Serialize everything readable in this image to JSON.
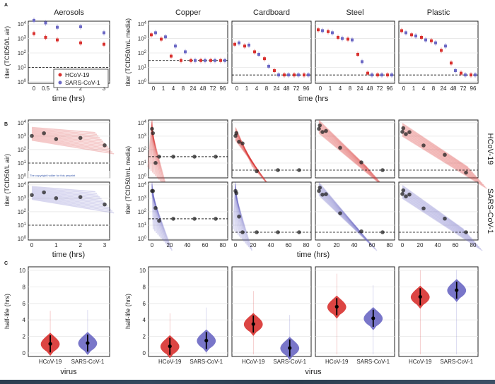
{
  "figure": {
    "panel_letters": [
      "A",
      "B",
      "C"
    ],
    "columns": [
      "Aerosols",
      "Copper",
      "Cardboard",
      "Steel",
      "Plastic"
    ],
    "rows": [
      "HCoV-19",
      "SARS-CoV-1"
    ],
    "colors": {
      "hcov19": "#d9312f",
      "sarscov1": "#6b68c4",
      "dashed": "#000000",
      "grid": "#e6e6e6"
    }
  },
  "chart_data": [
    {
      "id": "A",
      "type": "scatter",
      "ylabel": "titer (TCID50/L air) | titer (TCID50/mL media)",
      "xlabel_aerosol": "time (hrs)",
      "xlabel_surfaces": "time (hrs",
      "yticks": [
        "10^0",
        "10^1",
        "10^2",
        "10^3",
        "10^4"
      ],
      "aerosol_xticks": [
        "0",
        "0.5",
        "1",
        "2",
        "3"
      ],
      "surface_xticks": [
        "0",
        "1",
        "4",
        "8",
        "24",
        "48",
        "72",
        "96"
      ],
      "legend": [
        "HCoV-19",
        "SARS-CoV-1"
      ],
      "panels": {
        "Aerosols": {
          "detection_limit": 10,
          "series": [
            {
              "name": "HCoV-19",
              "x": [
                0,
                0.5,
                1,
                2,
                3
              ],
              "y": [
                2200,
                1200,
                800,
                500,
                400
              ]
            },
            {
              "name": "SARS-CoV-1",
              "x": [
                0,
                0.5,
                1,
                2,
                3
              ],
              "y": [
                18000,
                12000,
                6000,
                6500,
                2500
              ]
            }
          ]
        },
        "Copper": {
          "detection_limit": 30,
          "series": [
            {
              "name": "HCoV-19",
              "x": [
                0,
                1,
                4,
                8,
                24,
                48,
                72,
                96
              ],
              "y": [
                1800,
                900,
                60,
                30,
                30,
                30,
                30,
                30
              ]
            },
            {
              "name": "SARS-CoV-1",
              "x": [
                0,
                1,
                4,
                8,
                24,
                48,
                72,
                96
              ],
              "y": [
                2500,
                1300,
                300,
                120,
                30,
                30,
                30,
                30
              ]
            }
          ]
        },
        "Cardboard": {
          "detection_limit": 3,
          "series": [
            {
              "name": "HCoV-19",
              "x": [
                0,
                1,
                4,
                8,
                24,
                48,
                72,
                96
              ],
              "y": [
                400,
                300,
                120,
                40,
                6,
                3,
                3,
                3
              ]
            },
            {
              "name": "SARS-CoV-1",
              "x": [
                0,
                1,
                4,
                8,
                24,
                48,
                72,
                96
              ],
              "y": [
                500,
                350,
                80,
                12,
                3,
                3,
                3,
                3
              ]
            }
          ]
        },
        "Steel": {
          "detection_limit": 3,
          "series": [
            {
              "name": "HCoV-19",
              "x": [
                0,
                1,
                4,
                8,
                24,
                48,
                72,
                96
              ],
              "y": [
                4000,
                3000,
                1200,
                900,
                80,
                4,
                3,
                3
              ]
            },
            {
              "name": "SARS-CoV-1",
              "x": [
                0,
                1,
                4,
                8,
                24,
                48,
                72,
                96
              ],
              "y": [
                3500,
                2500,
                1000,
                800,
                25,
                3,
                3,
                3
              ]
            }
          ]
        },
        "Plastic": {
          "detection_limit": 3,
          "series": [
            {
              "name": "HCoV-19",
              "x": [
                0,
                1,
                4,
                8,
                24,
                48,
                72,
                96
              ],
              "y": [
                3500,
                1800,
                1200,
                700,
                150,
                20,
                4,
                3
              ]
            },
            {
              "name": "SARS-CoV-1",
              "x": [
                0,
                1,
                4,
                8,
                24,
                48,
                72,
                96
              ],
              "y": [
                2500,
                1500,
                800,
                500,
                300,
                6,
                3,
                3
              ]
            }
          ]
        }
      }
    },
    {
      "id": "B",
      "type": "scatter",
      "ylabel_aerosol": "titer (TCID50/L air)",
      "ylabel_surfaces": "titer (TCID50/mL media)",
      "xlabel": "time (hrs)",
      "aerosol_xticks": [
        "0",
        "1",
        "2",
        "3"
      ],
      "surface_xticks": [
        "0",
        "20",
        "40",
        "60",
        "80"
      ],
      "yticks": [
        "10^0",
        "10^1",
        "10^2",
        "10^3",
        "10^4"
      ],
      "overlay_text": "The copyright holder for this preprint",
      "decay_fits": {
        "HCoV-19": {
          "Aerosols": {
            "start": 1500,
            "end": 300,
            "xmax": 3,
            "detection_limit": 10
          },
          "Copper": {
            "start": 5000,
            "end": 1,
            "xend": 6,
            "detection_limit": 30
          },
          "Cardboard": {
            "start": 1500,
            "end": 1,
            "xend": 30,
            "detection_limit": 3
          },
          "Steel": {
            "start": 5000,
            "end": 1,
            "xend": 65,
            "detection_limit": 3
          },
          "Plastic": {
            "start": 3000,
            "end": 1,
            "xend": 85,
            "detection_limit": 3
          }
        },
        "SARS-CoV-1": {
          "Aerosols": {
            "start": 2500,
            "end": 500,
            "xmax": 3,
            "detection_limit": 10
          },
          "Copper": {
            "start": 5000,
            "end": 1,
            "xend": 12,
            "detection_limit": 30
          },
          "Cardboard": {
            "start": 5000,
            "end": 1,
            "xend": 8,
            "detection_limit": 3
          },
          "Steel": {
            "start": 5000,
            "end": 1,
            "xend": 55,
            "detection_limit": 3
          },
          "Plastic": {
            "start": 3000,
            "end": 1,
            "xend": 80,
            "detection_limit": 3
          }
        }
      }
    },
    {
      "id": "C",
      "type": "violin",
      "ylabel": "half-life (hrs)",
      "xlabel": "virus",
      "categories": [
        "HCoV-19",
        "SARS-CoV-1"
      ],
      "ylim": [
        0,
        10
      ],
      "yticks": [
        "0",
        "2",
        "4",
        "6",
        "8",
        "10"
      ],
      "medians": {
        "Aerosols": [
          1.1,
          1.2
        ],
        "Copper": [
          0.8,
          1.5
        ],
        "Cardboard": [
          3.5,
          0.6
        ],
        "Steel": [
          5.6,
          4.2
        ],
        "Plastic": [
          6.8,
          7.6
        ]
      }
    }
  ]
}
